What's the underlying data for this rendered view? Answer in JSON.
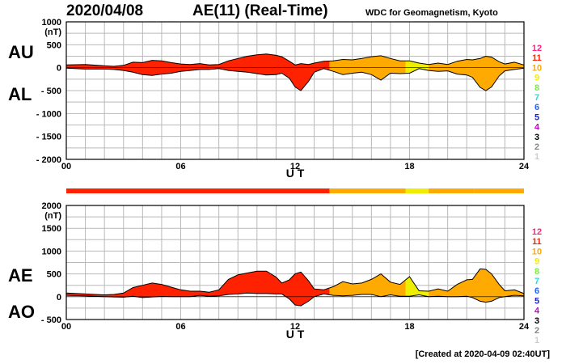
{
  "header": {
    "date": "2020/04/08",
    "title": "AE(11) (Real-Time)",
    "source": "WDC for Geomagnetism, Kyoto"
  },
  "footer": {
    "created": "[Created at 2020-04-09 02:40UT]"
  },
  "colors": {
    "scale": [
      "#cccccc",
      "#888888",
      "#000000",
      "#cc00cc",
      "#2222cc",
      "#2266ff",
      "#22dddd",
      "#77ee44",
      "#eeee00",
      "#ffaa00",
      "#ff2200",
      "#ff2288"
    ]
  },
  "chart_data": [
    {
      "type": "area",
      "name": "AU/AL",
      "labels": {
        "upper": "AU",
        "lower": "AL"
      },
      "unit": "(nT)",
      "xlabel": "U T",
      "xlim": [
        0,
        24
      ],
      "ylim": [
        -2000,
        1000
      ],
      "x_ticks": [
        "00",
        "06",
        "12",
        "18",
        "24"
      ],
      "y_ticks": [
        "1000",
        "500",
        "0",
        "- 500",
        "- 1000",
        "- 1500",
        "- 2000"
      ],
      "y_tick_values": [
        1000,
        500,
        0,
        -500,
        -1000,
        -1500,
        -2000
      ],
      "scale_legend": [
        "12",
        "11",
        "10",
        "9",
        "8",
        "7",
        "6",
        "5",
        "4",
        "3",
        "2",
        "1"
      ],
      "x": [
        0,
        1,
        2,
        2.5,
        3,
        3.5,
        4,
        4.5,
        5,
        5.5,
        6,
        6.5,
        7,
        7.5,
        8,
        8.5,
        9,
        9.5,
        10,
        10.5,
        11,
        11.3,
        11.7,
        12,
        12.3,
        12.7,
        13,
        13.5,
        14,
        14.5,
        15,
        15.5,
        16,
        16.5,
        17,
        17.5,
        18,
        18.5,
        19,
        19.5,
        20,
        20.5,
        21,
        21.3,
        21.7,
        22,
        22.3,
        22.7,
        23,
        23.5,
        24
      ],
      "series": [
        {
          "name": "AU",
          "values": [
            60,
            70,
            40,
            30,
            50,
            120,
            110,
            160,
            150,
            110,
            80,
            70,
            90,
            60,
            70,
            150,
            200,
            250,
            280,
            300,
            270,
            240,
            140,
            60,
            90,
            70,
            100,
            140,
            150,
            180,
            170,
            200,
            240,
            260,
            200,
            150,
            150,
            100,
            70,
            100,
            70,
            140,
            180,
            170,
            200,
            250,
            230,
            130,
            80,
            120,
            60
          ]
        },
        {
          "name": "AL",
          "values": [
            -10,
            -30,
            -30,
            -40,
            -60,
            -100,
            -150,
            -170,
            -140,
            -120,
            -80,
            -60,
            -40,
            -40,
            -20,
            -60,
            -80,
            -100,
            -130,
            -160,
            -150,
            -120,
            -230,
            -420,
            -500,
            -300,
            -100,
            -20,
            -80,
            -150,
            -120,
            -100,
            -150,
            -270,
            -120,
            -130,
            -120,
            -20,
            -60,
            -80,
            -70,
            -140,
            -160,
            -210,
            -430,
            -500,
            -420,
            -180,
            -70,
            -40,
            -10
          ]
        }
      ]
    },
    {
      "type": "area",
      "name": "AE/AO",
      "labels": {
        "upper": "AE",
        "lower": "AO"
      },
      "unit": "(nT)",
      "xlabel": "U T",
      "xlim": [
        0,
        24
      ],
      "ylim": [
        -500,
        2000
      ],
      "x_ticks": [
        "00",
        "06",
        "12",
        "18",
        "24"
      ],
      "y_ticks": [
        "2000",
        "1500",
        "1000",
        "500",
        "0",
        "- 500"
      ],
      "y_tick_values": [
        2000,
        1500,
        1000,
        500,
        0,
        -500
      ],
      "scale_legend": [
        "12",
        "11",
        "10",
        "9",
        "8",
        "7",
        "6",
        "5",
        "4",
        "3",
        "2",
        "1"
      ],
      "x": [
        0,
        1,
        2,
        2.5,
        3,
        3.5,
        4,
        4.5,
        5,
        5.5,
        6,
        6.5,
        7,
        7.5,
        8,
        8.5,
        9,
        9.5,
        10,
        10.5,
        11,
        11.3,
        11.7,
        12,
        12.3,
        12.7,
        13,
        13.5,
        14,
        14.5,
        15,
        15.5,
        16,
        16.5,
        17,
        17.5,
        18,
        18.5,
        19,
        19.5,
        20,
        20.5,
        21,
        21.3,
        21.7,
        22,
        22.3,
        22.7,
        23,
        23.5,
        24
      ],
      "series": [
        {
          "name": "AE",
          "values": [
            80,
            60,
            40,
            50,
            80,
            200,
            250,
            300,
            270,
            210,
            150,
            120,
            120,
            100,
            150,
            380,
            480,
            520,
            560,
            560,
            430,
            300,
            370,
            500,
            540,
            350,
            170,
            150,
            220,
            330,
            280,
            300,
            380,
            500,
            320,
            270,
            440,
            130,
            120,
            170,
            120,
            270,
            370,
            380,
            610,
            600,
            500,
            270,
            130,
            150,
            70
          ]
        },
        {
          "name": "AO",
          "values": [
            30,
            20,
            0,
            -5,
            -10,
            10,
            -20,
            -5,
            5,
            0,
            0,
            0,
            30,
            10,
            20,
            50,
            60,
            80,
            70,
            70,
            60,
            60,
            -50,
            -180,
            -200,
            -100,
            0,
            60,
            30,
            20,
            30,
            50,
            50,
            0,
            40,
            10,
            10,
            40,
            0,
            10,
            0,
            0,
            10,
            -20,
            -100,
            -120,
            -100,
            -20,
            0,
            30,
            20
          ]
        }
      ]
    }
  ],
  "activity_bar": {
    "segments": [
      {
        "start": 0,
        "end": 13.8,
        "level": "11"
      },
      {
        "start": 13.8,
        "end": 17.8,
        "level": "10"
      },
      {
        "start": 17.8,
        "end": 19.0,
        "level": "9"
      },
      {
        "start": 19.0,
        "end": 21.4,
        "level": "10"
      },
      {
        "start": 21.4,
        "end": 24,
        "level": "10"
      }
    ]
  },
  "period_colors": [
    {
      "start": 0,
      "end": 13.8,
      "color": "#ff2200"
    },
    {
      "start": 13.8,
      "end": 17.8,
      "color": "#ffaa00"
    },
    {
      "start": 17.8,
      "end": 19.0,
      "color": "#eeee00"
    },
    {
      "start": 19.0,
      "end": 24,
      "color": "#ffaa00"
    }
  ]
}
